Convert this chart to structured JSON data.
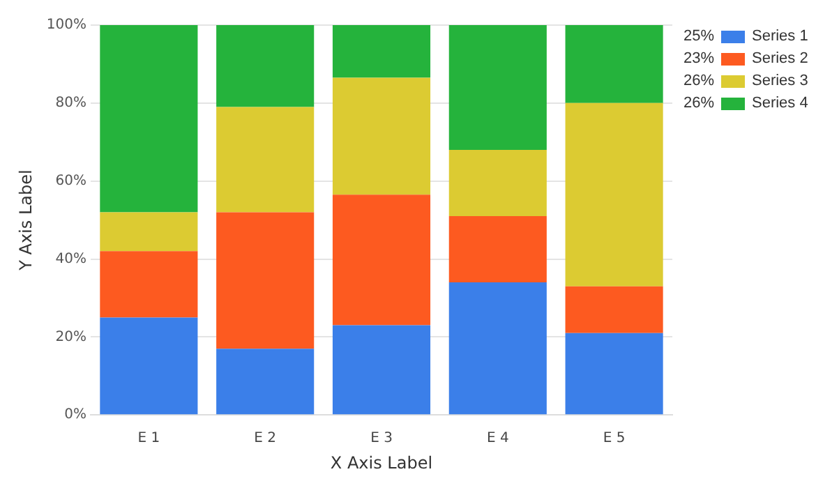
{
  "chart_data": {
    "type": "bar",
    "stacked": true,
    "xlabel": "X Axis Label",
    "ylabel": "Y Axis Label",
    "categories": [
      "E 1",
      "E 2",
      "E 3",
      "E 4",
      "E 5"
    ],
    "series": [
      {
        "name": "Series 1",
        "color": "#3b7fe9",
        "values": [
          25,
          17,
          23,
          34,
          21
        ]
      },
      {
        "name": "Series 2",
        "color": "#fd5a20",
        "values": [
          17,
          35,
          33.5,
          17,
          12
        ]
      },
      {
        "name": "Series 3",
        "color": "#dccb32",
        "values": [
          10,
          27,
          30,
          17,
          47
        ]
      },
      {
        "name": "Series 4",
        "color": "#25b33c",
        "values": [
          48,
          21,
          13.5,
          32,
          20
        ]
      }
    ],
    "ylim": [
      0,
      100
    ],
    "yticks": [
      {
        "value": 0,
        "label": "0%"
      },
      {
        "value": 20,
        "label": "20%"
      },
      {
        "value": 40,
        "label": "40%"
      },
      {
        "value": 60,
        "label": "60%"
      },
      {
        "value": 80,
        "label": "80%"
      },
      {
        "value": 100,
        "label": "100%"
      }
    ],
    "grid": "y",
    "legend": "top right",
    "annotations": [
      "25%",
      "23%",
      "26%",
      "26%"
    ]
  }
}
